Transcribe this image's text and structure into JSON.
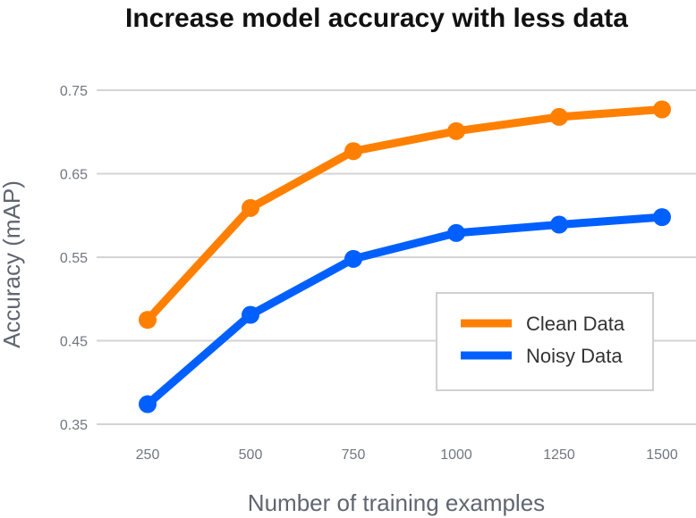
{
  "chart_data": {
    "type": "line",
    "title": "Increase model accuracy with less data",
    "xlabel": "Number of training examples",
    "ylabel": "Accuracy (mAP)",
    "categories": [
      "250",
      "500",
      "750",
      "1000",
      "1250",
      "1500"
    ],
    "y_ticks": [
      "0.75",
      "0.65",
      "0.55",
      "0.45",
      "0.35"
    ],
    "ylim": [
      0.35,
      0.75
    ],
    "grid": "horizontal",
    "legend_position": "lower-right",
    "series": [
      {
        "name": "Clean Data",
        "color": "#ff8000",
        "values": [
          0.475,
          0.609,
          0.677,
          0.701,
          0.718,
          0.727
        ]
      },
      {
        "name": "Noisy Data",
        "color": "#0060ff",
        "values": [
          0.374,
          0.481,
          0.548,
          0.579,
          0.589,
          0.598
        ]
      }
    ]
  }
}
